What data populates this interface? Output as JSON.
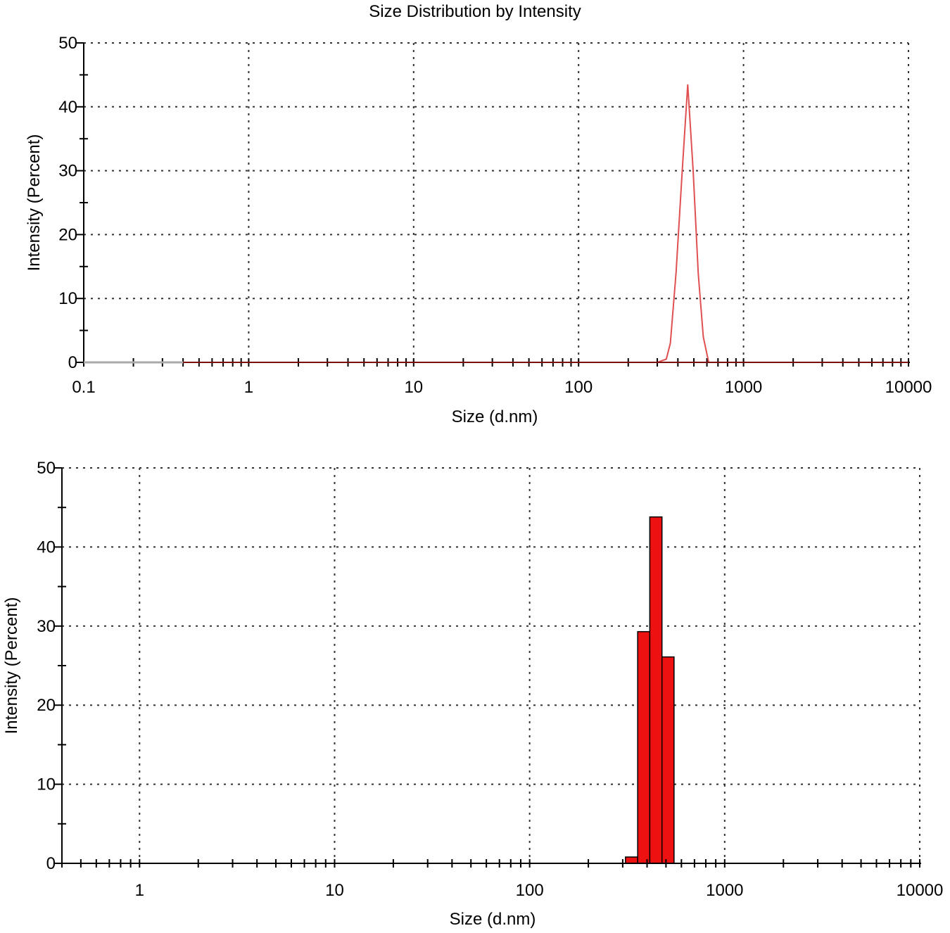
{
  "chart_data": [
    {
      "type": "line",
      "title": "Size Distribution by Intensity",
      "xlabel": "Size (d.nm)",
      "ylabel": "Intensity (Percent)",
      "xscale": "log",
      "xlim": [
        0.1,
        10000
      ],
      "ylim": [
        0,
        50
      ],
      "x_ticks": [
        "0.1",
        "1",
        "10",
        "100",
        "1000",
        "10000"
      ],
      "y_ticks": [
        "0",
        "10",
        "20",
        "30",
        "40",
        "50"
      ],
      "grid": true,
      "line_color": "#e05050",
      "series": [
        {
          "x": [
            0.1,
            0.4,
            1,
            10,
            100,
            300,
            340,
            360,
            390,
            425,
            459,
            495,
            531,
            570,
            615,
            660,
            1000,
            10000
          ],
          "y": [
            0,
            0,
            0,
            0,
            0,
            0,
            0.5,
            3,
            14,
            30,
            43.5,
            30,
            14,
            4,
            0,
            0,
            0,
            0
          ]
        }
      ]
    },
    {
      "type": "bar",
      "title": "",
      "xlabel": "Size (d.nm)",
      "ylabel": "Intensity (Percent)",
      "xscale": "log",
      "xlim": [
        0.4,
        10000
      ],
      "ylim": [
        0,
        50
      ],
      "x_ticks": [
        "1",
        "10",
        "100",
        "1000",
        "10000"
      ],
      "y_ticks": [
        "0",
        "10",
        "20",
        "30",
        "40",
        "50"
      ],
      "grid": true,
      "bar_color": "#ee1111",
      "bins": [
        {
          "x0": 310,
          "x1": 358,
          "value": 0.8
        },
        {
          "x0": 358,
          "x1": 413,
          "value": 29.3
        },
        {
          "x0": 413,
          "x1": 477,
          "value": 43.8
        },
        {
          "x0": 477,
          "x1": 550,
          "value": 26.1
        }
      ]
    }
  ]
}
